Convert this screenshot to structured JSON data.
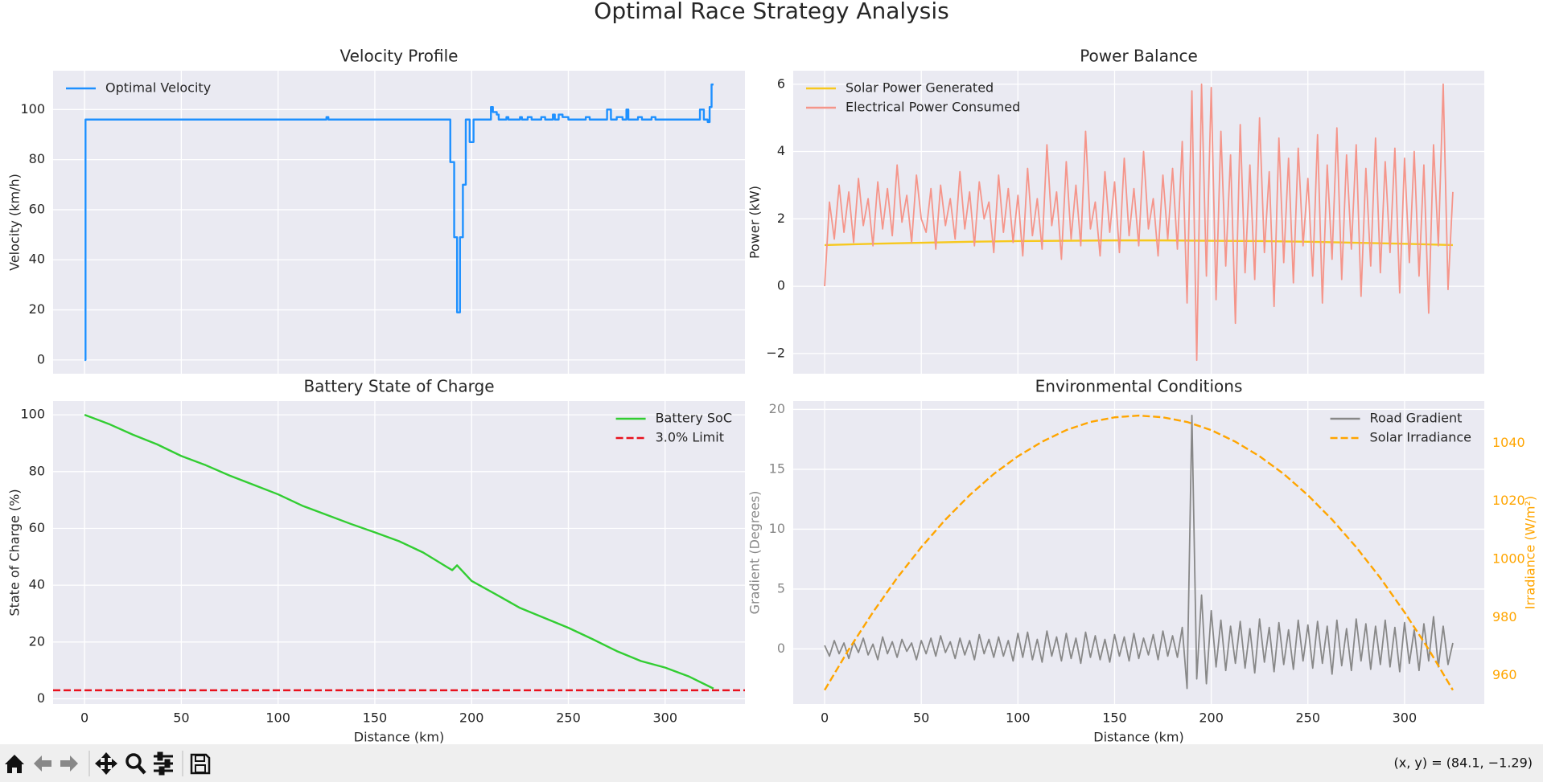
{
  "title": "Optimal Race Strategy Analysis",
  "chart_data": [
    {
      "type": "line",
      "title": "Velocity Profile",
      "ylabel": "Velocity (km/h)",
      "xlim": [
        -16.25,
        341.25
      ],
      "ylim": [
        -5.5,
        115.5
      ],
      "xticks": [
        0,
        50,
        100,
        150,
        200,
        250,
        300
      ],
      "yticks": [
        0,
        20,
        40,
        60,
        80,
        100
      ],
      "show_xticklabels": false,
      "grid": true,
      "legend": "upper left",
      "drawstyle": "steps-post",
      "series": [
        {
          "name": "Optimal Velocity",
          "color": "#1e90ff",
          "x": [
            0,
            0.5,
            125,
            126,
            189,
            191,
            192.5,
            194,
            195.5,
            197,
            199,
            201,
            210,
            211,
            213,
            214,
            218,
            219,
            225,
            226,
            229,
            231,
            236,
            238,
            242,
            243,
            245,
            247,
            250,
            259,
            261,
            270,
            272,
            275,
            278,
            280,
            281,
            286,
            288,
            293,
            295,
            318,
            320,
            322,
            323,
            324,
            325
          ],
          "values": [
            0,
            96,
            97,
            96,
            79,
            49,
            19,
            49,
            70,
            96,
            87,
            96,
            101,
            99,
            98,
            96,
            97,
            96,
            97,
            96,
            97,
            96,
            97,
            96,
            98,
            96,
            98,
            97,
            96,
            97,
            96,
            100,
            96,
            97,
            96,
            100,
            96,
            97,
            96,
            97,
            96,
            100,
            96,
            95,
            101,
            110,
            110
          ]
        }
      ]
    },
    {
      "type": "line",
      "title": "Power Balance",
      "ylabel": "Power (kW)",
      "xlim": [
        -16.25,
        341.25
      ],
      "ylim": [
        -2.6,
        6.4
      ],
      "xticks": [
        0,
        50,
        100,
        150,
        200,
        250,
        300
      ],
      "yticks": [
        {
          "value": -2,
          "label": "−2"
        },
        0,
        2,
        4,
        6
      ],
      "show_xticklabels": false,
      "grid": true,
      "legend": "upper left",
      "series": [
        {
          "name": "Solar Power Generated",
          "color": "#f7c81e",
          "x": [
            0,
            25,
            50,
            75,
            100,
            125,
            150,
            175,
            200,
            225,
            250,
            275,
            300,
            325
          ],
          "values": [
            1.22,
            1.26,
            1.29,
            1.32,
            1.34,
            1.35,
            1.36,
            1.36,
            1.35,
            1.34,
            1.32,
            1.29,
            1.26,
            1.22
          ]
        },
        {
          "name": "Electrical Power Consumed",
          "color": "#f5958a",
          "x": [
            0,
            2.5,
            5,
            7.5,
            10,
            12.5,
            15,
            17.5,
            20,
            22.5,
            25,
            27.5,
            30,
            32.5,
            35,
            37.5,
            40,
            42.5,
            45,
            47.5,
            50,
            52.5,
            55,
            57.5,
            60,
            62.5,
            65,
            67.5,
            70,
            72.5,
            75,
            77.5,
            80,
            82.5,
            85,
            87.5,
            90,
            92.5,
            95,
            97.5,
            100,
            102.5,
            105,
            107.5,
            110,
            112.5,
            115,
            117.5,
            120,
            122.5,
            125,
            127.5,
            130,
            132.5,
            135,
            137.5,
            140,
            142.5,
            145,
            147.5,
            150,
            152.5,
            155,
            157.5,
            160,
            162.5,
            165,
            167.5,
            170,
            172.5,
            175,
            177.5,
            180,
            182.5,
            185,
            187.5,
            190,
            192.5,
            195,
            197.5,
            200,
            202.5,
            205,
            207.5,
            210,
            212.5,
            215,
            217.5,
            220,
            222.5,
            225,
            227.5,
            230,
            232.5,
            235,
            237.5,
            240,
            242.5,
            245,
            247.5,
            250,
            252.5,
            255,
            257.5,
            260,
            262.5,
            265,
            267.5,
            270,
            272.5,
            275,
            277.5,
            280,
            282.5,
            285,
            287.5,
            290,
            292.5,
            295,
            297.5,
            300,
            302.5,
            305,
            307.5,
            310,
            312.5,
            315,
            317.5,
            320,
            322.5,
            325
          ],
          "values": [
            0.0,
            2.5,
            1.4,
            3.0,
            1.6,
            2.8,
            1.3,
            3.2,
            1.8,
            2.6,
            1.2,
            3.1,
            1.7,
            2.9,
            1.5,
            3.6,
            1.9,
            2.7,
            1.3,
            3.3,
            2.0,
            1.6,
            2.9,
            1.1,
            3.0,
            1.8,
            2.6,
            1.4,
            3.4,
            1.7,
            2.8,
            1.2,
            3.1,
            2.0,
            2.5,
            1.0,
            3.3,
            1.6,
            2.9,
            1.3,
            2.7,
            0.9,
            3.5,
            1.5,
            2.6,
            1.1,
            4.2,
            1.8,
            2.8,
            0.8,
            3.7,
            1.4,
            3.0,
            1.2,
            4.6,
            1.7,
            2.5,
            0.9,
            3.4,
            1.6,
            3.1,
            1.0,
            3.8,
            1.5,
            2.9,
            1.2,
            4.0,
            1.7,
            2.6,
            0.9,
            3.3,
            1.4,
            3.5,
            1.1,
            4.3,
            -0.5,
            5.8,
            -2.2,
            6.0,
            0.3,
            5.9,
            -0.4,
            4.6,
            0.6,
            3.9,
            -1.1,
            4.8,
            0.4,
            3.6,
            0.2,
            5.0,
            1.0,
            3.4,
            -0.6,
            4.4,
            0.7,
            3.8,
            0.1,
            4.1,
            1.2,
            3.2,
            0.3,
            4.5,
            -0.5,
            3.6,
            0.8,
            4.7,
            0.2,
            3.9,
            1.1,
            4.2,
            -0.3,
            3.5,
            0.6,
            4.4,
            0.4,
            3.7,
            1.0,
            4.1,
            -0.2,
            3.8,
            0.7,
            4.0,
            0.3,
            3.6,
            -0.8,
            4.2,
            1.2,
            6.0,
            -0.1,
            2.8
          ]
        }
      ]
    },
    {
      "type": "line",
      "title": "Battery State of Charge",
      "xlabel": "Distance (km)",
      "ylabel": "State of Charge (%)",
      "xlim": [
        -16.25,
        341.25
      ],
      "ylim": [
        -1.85,
        104.85
      ],
      "xticks": [
        0,
        50,
        100,
        150,
        200,
        250,
        300
      ],
      "yticks": [
        0,
        20,
        40,
        60,
        80,
        100
      ],
      "grid": true,
      "legend": "upper right",
      "series": [
        {
          "name": "Battery SoC",
          "color": "#32cd32",
          "x": [
            0,
            12.5,
            25,
            37.5,
            50,
            62.5,
            75,
            87.5,
            100,
            112.5,
            125,
            137.5,
            150,
            162.5,
            175,
            187.5,
            190,
            192.5,
            200,
            212.5,
            225,
            237.5,
            250,
            262.5,
            275,
            287.5,
            300,
            312.5,
            325
          ],
          "values": [
            100,
            96.8,
            93.0,
            89.6,
            85.5,
            82.3,
            78.6,
            75.3,
            72.0,
            68.0,
            64.8,
            61.6,
            58.6,
            55.5,
            51.5,
            46.3,
            45.3,
            47.0,
            41.5,
            36.8,
            32.0,
            28.5,
            25.0,
            21.0,
            16.8,
            13.3,
            11.0,
            7.8,
            3.6
          ]
        },
        {
          "name": "3.0% Limit",
          "color": "#e8111d",
          "linestyle": "dashed",
          "hline": 3
        }
      ]
    },
    {
      "type": "line",
      "title": "Environmental Conditions",
      "xlabel": "Distance (km)",
      "ylabel": "Gradient (Degrees)",
      "ylabel_color": "#888888",
      "y2label": "Irradiance (W/m²)",
      "y2label_color": "#ffa500",
      "xlim": [
        -16.25,
        341.25
      ],
      "ylim": [
        -4.6,
        20.7
      ],
      "y2lim": [
        950.2,
        1054.5
      ],
      "xticks": [
        0,
        50,
        100,
        150,
        200,
        250,
        300
      ],
      "yticks": [
        0,
        5,
        10,
        15,
        20
      ],
      "y2ticks": [
        960,
        980,
        1000,
        1020,
        1040
      ],
      "grid": true,
      "legend": "upper right",
      "series": [
        {
          "name": "Road Gradient",
          "color": "#888888",
          "x": [
            0,
            2.5,
            5,
            7.5,
            10,
            12.5,
            15,
            17.5,
            20,
            22.5,
            25,
            27.5,
            30,
            32.5,
            35,
            37.5,
            40,
            42.5,
            45,
            47.5,
            50,
            52.5,
            55,
            57.5,
            60,
            62.5,
            65,
            67.5,
            70,
            72.5,
            75,
            77.5,
            80,
            82.5,
            85,
            87.5,
            90,
            92.5,
            95,
            97.5,
            100,
            102.5,
            105,
            107.5,
            110,
            112.5,
            115,
            117.5,
            120,
            122.5,
            125,
            127.5,
            130,
            132.5,
            135,
            137.5,
            140,
            142.5,
            145,
            147.5,
            150,
            152.5,
            155,
            157.5,
            160,
            162.5,
            165,
            167.5,
            170,
            172.5,
            175,
            177.5,
            180,
            182.5,
            185,
            187.5,
            190,
            192.5,
            195,
            197.5,
            200,
            202.5,
            205,
            207.5,
            210,
            212.5,
            215,
            217.5,
            220,
            222.5,
            225,
            227.5,
            230,
            232.5,
            235,
            237.5,
            240,
            242.5,
            245,
            247.5,
            250,
            252.5,
            255,
            257.5,
            260,
            262.5,
            265,
            267.5,
            270,
            272.5,
            275,
            277.5,
            280,
            282.5,
            285,
            287.5,
            290,
            292.5,
            295,
            297.5,
            300,
            302.5,
            305,
            307.5,
            310,
            312.5,
            315,
            317.5,
            320,
            322.5,
            325
          ],
          "values": [
            0.3,
            -0.6,
            0.7,
            -0.4,
            0.5,
            -0.8,
            0.6,
            -0.3,
            0.9,
            -0.5,
            0.4,
            -0.9,
            1.0,
            -0.4,
            0.6,
            -0.7,
            0.8,
            -0.2,
            0.5,
            -0.9,
            0.7,
            -0.4,
            0.9,
            -0.6,
            1.1,
            -0.3,
            0.6,
            -0.8,
            0.9,
            -0.5,
            0.7,
            -0.9,
            1.2,
            -0.4,
            0.8,
            -0.7,
            1.0,
            -0.6,
            0.7,
            -1.0,
            1.3,
            -0.7,
            1.4,
            -0.9,
            0.8,
            -1.1,
            1.5,
            -0.6,
            1.0,
            -1.0,
            1.3,
            -0.8,
            0.9,
            -1.2,
            1.4,
            -0.7,
            1.1,
            -0.9,
            0.8,
            -1.1,
            1.2,
            -0.6,
            1.0,
            -1.0,
            1.3,
            -0.8,
            0.9,
            -0.5,
            1.2,
            -0.9,
            1.5,
            -0.6,
            1.1,
            -0.7,
            1.8,
            -3.3,
            19.5,
            -2.5,
            4.5,
            -2.9,
            3.2,
            -1.5,
            2.4,
            -1.8,
            1.9,
            -1.2,
            2.3,
            -1.6,
            1.7,
            -2.0,
            2.5,
            -1.1,
            1.8,
            -1.9,
            2.2,
            -1.3,
            1.6,
            -1.7,
            2.4,
            -1.0,
            2.0,
            -1.6,
            2.3,
            -1.2,
            1.9,
            -2.1,
            2.4,
            -1.4,
            1.7,
            -1.8,
            2.5,
            -1.0,
            2.1,
            -1.7,
            1.9,
            -1.3,
            2.4,
            -1.5,
            1.8,
            -1.9,
            2.2,
            -1.2,
            1.6,
            -1.8,
            2.1,
            -1.0,
            2.7,
            -1.5,
            1.9,
            -1.3,
            0.5
          ]
        },
        {
          "name": "Solar Irradiance",
          "color": "#ffa500",
          "linestyle": "dashed",
          "axis": "y2",
          "x": [
            0,
            12.5,
            25,
            37.5,
            50,
            62.5,
            75,
            87.5,
            100,
            112.5,
            125,
            137.5,
            150,
            162.5,
            175,
            187.5,
            200,
            212.5,
            225,
            237.5,
            250,
            262.5,
            275,
            287.5,
            300,
            312.5,
            325
          ],
          "values": [
            955.0,
            969.0,
            981.8,
            993.6,
            1004.2,
            1013.7,
            1022.1,
            1029.4,
            1035.5,
            1040.5,
            1044.5,
            1047.3,
            1048.9,
            1049.5,
            1048.9,
            1047.3,
            1044.5,
            1040.5,
            1035.5,
            1029.4,
            1022.1,
            1013.7,
            1004.2,
            993.6,
            981.8,
            969.0,
            955.0
          ]
        }
      ]
    }
  ],
  "toolbar": {
    "status": "(x, y) = (84.1, −1.29)"
  }
}
